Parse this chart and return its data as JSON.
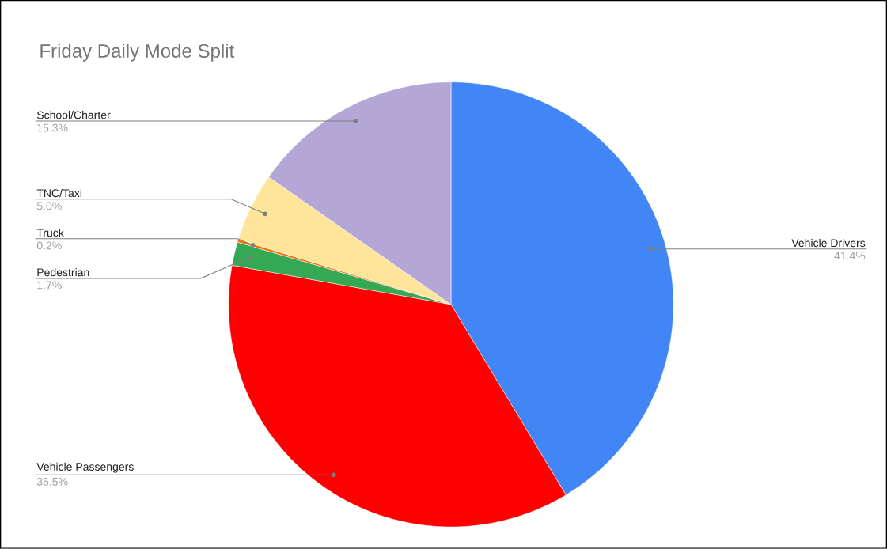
{
  "chart_data": {
    "type": "pie",
    "title": "Friday Daily Mode Split",
    "categories": [
      "Vehicle Drivers",
      "Vehicle Passengers",
      "Pedestrian",
      "Truck",
      "TNC/Taxi",
      "School/Charter"
    ],
    "values": [
      41.4,
      36.5,
      1.7,
      0.2,
      5.0,
      15.3
    ],
    "colors": [
      "#4285f4",
      "#ff0000",
      "#34a853",
      "#ff6d01",
      "#ffe599",
      "#b4a7d6"
    ],
    "value_labels": [
      "41.4%",
      "36.5%",
      "1.7%",
      "0.2%",
      "5.0%",
      "15.3%"
    ]
  }
}
